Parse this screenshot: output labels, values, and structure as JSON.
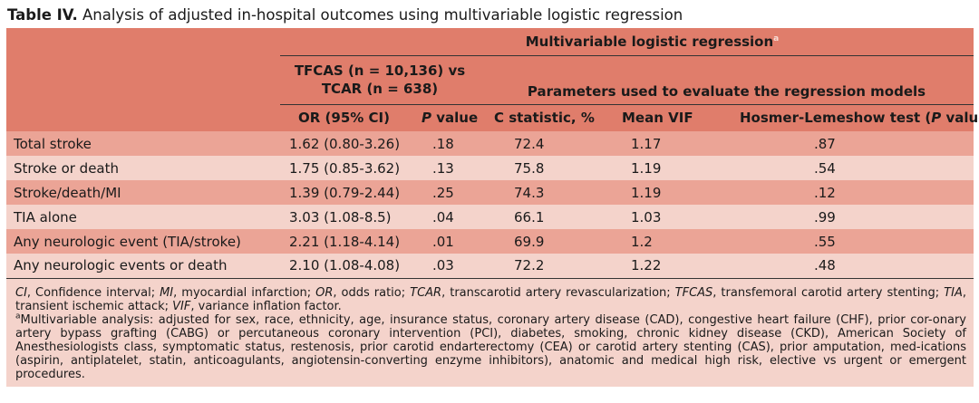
{
  "caption": {
    "label": "Table IV.",
    "title": "Analysis of adjusted in-hospital outcomes using multivariable logistic regression"
  },
  "header": {
    "group_title": "Multivariable logistic regression",
    "group_sup": "a",
    "comparison": "TFCAS (n = 10,136) vs\nTCAR (n = 638)",
    "parameters": "Parameters used to evaluate the regression models",
    "col_or": "OR (95% CI)",
    "col_p_italic": "P",
    "col_p_rest": " value",
    "col_c": "C statistic, %",
    "col_vif": "Mean VIF",
    "col_hl_main": "Hosmer-Lemeshow test (",
    "col_hl_italic": "P",
    "col_hl_end": " value)"
  },
  "rows": [
    {
      "outcome": "Total stroke",
      "or": "1.62 (0.80-3.26)",
      "p": ".18",
      "c": "72.4",
      "vif": "1.17",
      "hl": ".87"
    },
    {
      "outcome": "Stroke or death",
      "or": "1.75 (0.85-3.62)",
      "p": ".13",
      "c": "75.8",
      "vif": "1.19",
      "hl": ".54"
    },
    {
      "outcome": "Stroke/death/MI",
      "or": "1.39 (0.79-2.44)",
      "p": ".25",
      "c": "74.3",
      "vif": "1.19",
      "hl": ".12"
    },
    {
      "outcome": "TIA alone",
      "or": "3.03 (1.08-8.5)",
      "p": ".04",
      "c": "66.1",
      "vif": "1.03",
      "hl": ".99"
    },
    {
      "outcome": "Any neurologic event (TIA/stroke)",
      "or": "2.21 (1.18-4.14)",
      "p": ".01",
      "c": "69.9",
      "vif": "1.2",
      "hl": ".55"
    },
    {
      "outcome": "Any neurologic events or death",
      "or": "2.10 (1.08-4.08)",
      "p": ".03",
      "c": "72.2",
      "vif": "1.22",
      "hl": ".48"
    }
  ],
  "footnotes": {
    "abbrev": [
      {
        "term": "CI",
        "def": ", Confidence interval; "
      },
      {
        "term": "MI",
        "def": ", myocardial infarction; "
      },
      {
        "term": "OR",
        "def": ", odds ratio; "
      },
      {
        "term": "TCAR",
        "def": ", transcarotid artery revascularization; "
      },
      {
        "term": "TFCAS",
        "def": ", transfemoral carotid artery stenting; "
      },
      {
        "term": "TIA",
        "def": ", transient ischemic attack; "
      },
      {
        "term": "VIF",
        "def": ", variance inflation factor."
      }
    ],
    "note_marker": "a",
    "note_text": "Multivariable analysis: adjusted for sex, race, ethnicity, age, insurance status, coronary artery disease (CAD), congestive heart failure (CHF), prior cor-onary artery bypass grafting (CABG) or percutaneous coronary intervention (PCI), diabetes, smoking, chronic kidney disease (CKD), American Society of Anesthesiologists class, symptomatic status, restenosis, prior carotid endarterectomy (CEA) or carotid artery stenting (CAS), prior amputation, med-ications (aspirin, antiplatelet, statin, anticoagulants, angiotensin-converting enzyme inhibitors), anatomic and medical high risk, elective vs urgent or emergent procedures."
  }
}
